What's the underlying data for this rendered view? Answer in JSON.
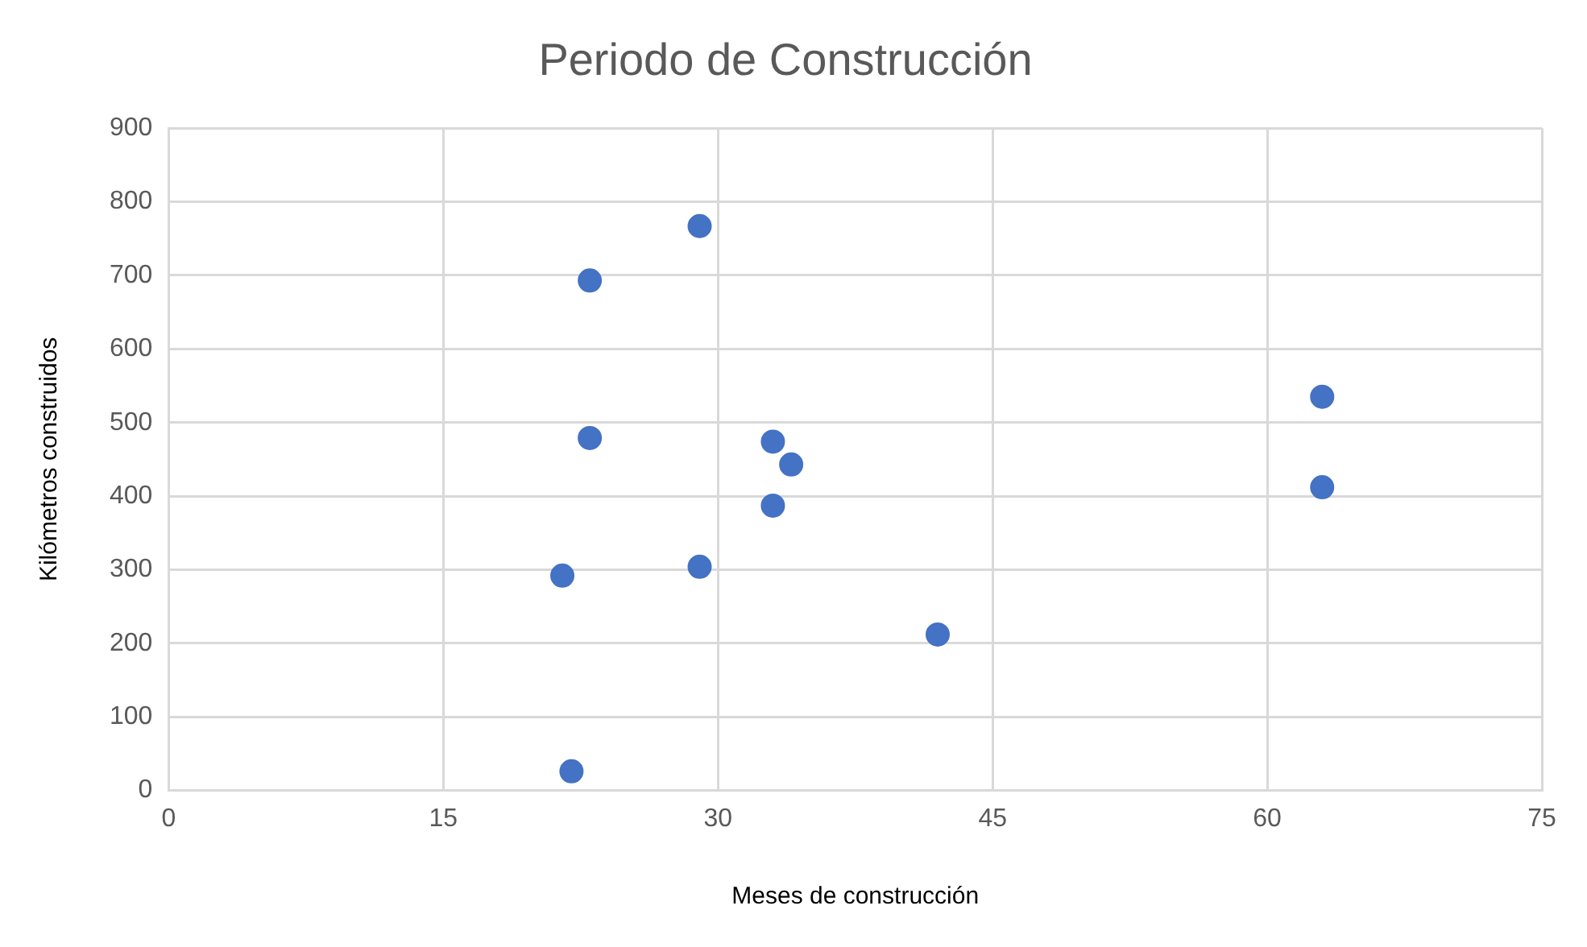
{
  "chart_data": {
    "type": "scatter",
    "title": "Periodo de Construcción",
    "xlabel": "Meses de construcción",
    "ylabel": "Kilómetros construidos",
    "x": [
      29,
      23,
      23,
      33,
      34,
      33,
      29,
      21.5,
      22,
      42,
      63,
      63
    ],
    "series": [
      {
        "color": "#4472c4",
        "values": [
          767,
          693,
          479,
          474,
          443,
          387,
          304,
          292,
          26,
          212,
          535,
          412
        ]
      }
    ],
    "xlim": [
      0,
      75
    ],
    "xticks": [
      0,
      15,
      30,
      45,
      60,
      75
    ],
    "ylim": [
      0,
      900
    ],
    "yticks": [
      0,
      100,
      200,
      300,
      400,
      500,
      600,
      700,
      800,
      900
    ],
    "grid": true,
    "legend": false,
    "marker": "circle"
  }
}
